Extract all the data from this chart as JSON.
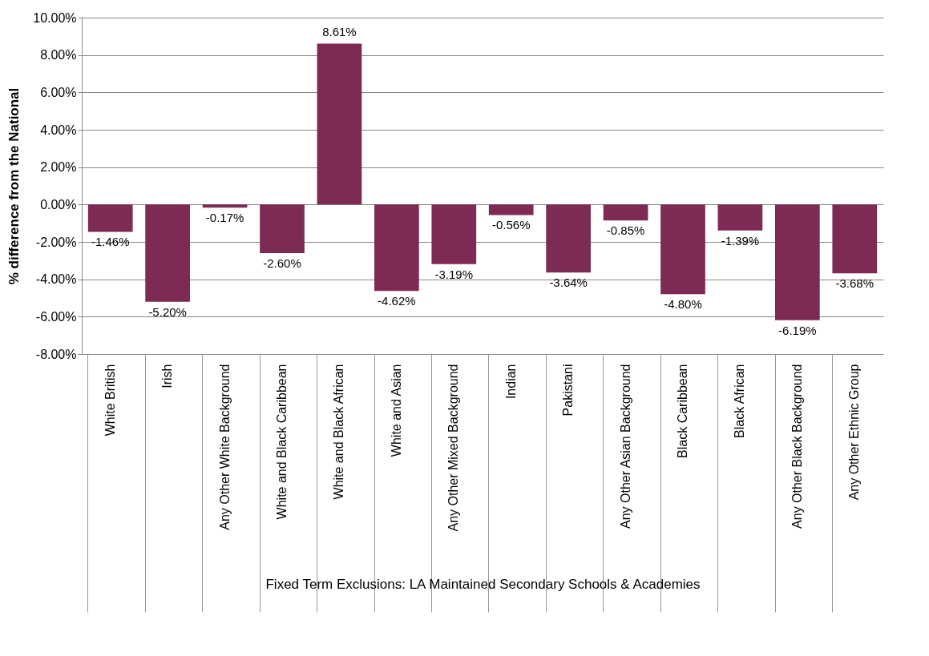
{
  "chart_data": {
    "type": "bar",
    "categories": [
      "White British",
      "Irish",
      "Any Other White Background",
      "White and Black Caribbean",
      "White and Black African",
      "White and Asian",
      "Any Other Mixed Background",
      "Indian",
      "Pakistani",
      "Any Other Asian Background",
      "Black Caribbean",
      "Black African",
      "Any Other Black Background",
      "Any Other Ethnic Group"
    ],
    "values": [
      -1.46,
      -5.2,
      -0.17,
      -2.6,
      8.61,
      -4.62,
      -3.19,
      -0.56,
      -3.64,
      -0.85,
      -4.8,
      -1.39,
      -6.19,
      -3.68
    ],
    "value_labels": [
      "-1.46%",
      "-5.20%",
      "-0.17%",
      "-2.60%",
      "8.61%",
      "-4.62%",
      "-3.19%",
      "-0.56%",
      "-3.64%",
      "-0.85%",
      "-4.80%",
      "-1.39%",
      "-6.19%",
      "-3.68%"
    ],
    "color": "#7d2b55",
    "ylim": [
      -8,
      10
    ],
    "yticks": [
      {
        "value": -8,
        "label": "-8.00%"
      },
      {
        "value": -6,
        "label": "-6.00%"
      },
      {
        "value": -4,
        "label": "-4.00%"
      },
      {
        "value": -2,
        "label": "-2.00%"
      },
      {
        "value": 0,
        "label": "0.00%"
      },
      {
        "value": 2,
        "label": "2.00%"
      },
      {
        "value": 4,
        "label": "4.00%"
      },
      {
        "value": 6,
        "label": "6.00%"
      },
      {
        "value": 8,
        "label": "8.00%"
      },
      {
        "value": 10,
        "label": "10.00%"
      }
    ],
    "ylabel": "% difference from the National",
    "xlabel": "Fixed Term Exclusions:  LA Maintained Secondary Schools & Academies",
    "grid": "y"
  }
}
